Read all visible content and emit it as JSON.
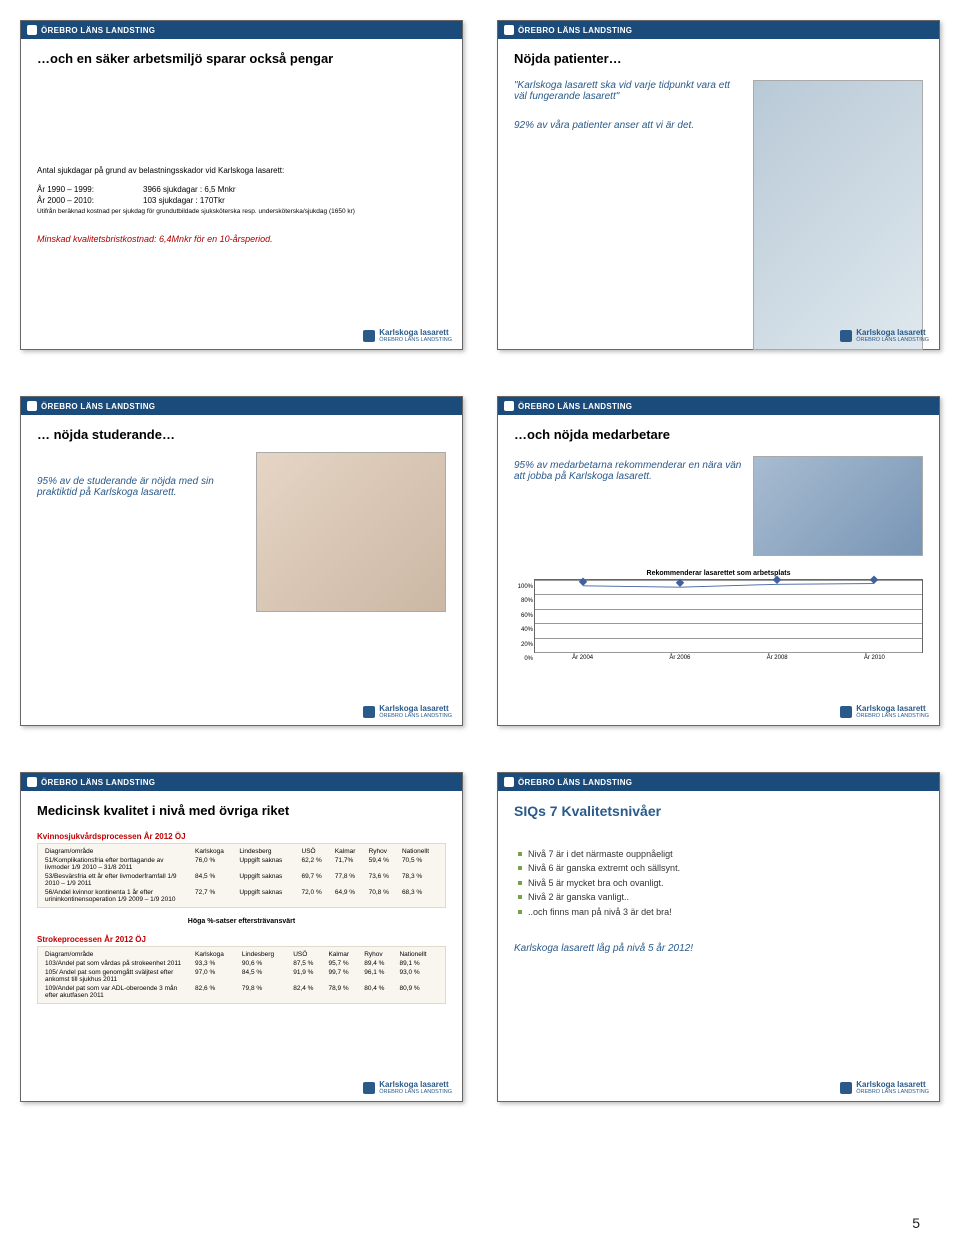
{
  "org": "ÖREBRO LÄNS LANDSTING",
  "footer_logo": "Karlskoga lasarett",
  "footer_logo_sub": "ÖREBRO LÄNS LANDSTING",
  "page_number": "5",
  "slide1": {
    "title": "…och en säker arbetsmiljö sparar också pengar",
    "lead": "Antal sjukdagar på grund av belastningsskador vid Karlskoga lasarett:",
    "row1_l": "År 1990 – 1999:",
    "row1_r": "3966 sjukdagar : 6,5 Mnkr",
    "row2_l": "År 2000 – 2010:",
    "row2_r": "103 sjukdagar : 170Tkr",
    "fine": "Utifrån beräknad kostnad per sjukdag för grundutbildade sjuksköterska resp. undersköterska/sjukdag (1650 kr)",
    "summary": "Minskad kvalitetsbristkostnad: 6,4Mnkr för en 10-årsperiod."
  },
  "slide2": {
    "title": "Nöjda patienter…",
    "quote1": "\"Karlskoga lasarett ska vid varje tidpunkt vara ett väl fungerande lasarett\"",
    "quote2": "92% av våra patienter anser att vi är det."
  },
  "slide3": {
    "title": "… nöjda studerande…",
    "text": "95% av de studerande är nöjda med sin praktiktid på Karlskoga lasarett."
  },
  "slide4": {
    "title": "…och nöjda medarbetare",
    "text": "95% av medarbetarna rekommenderar en nära vän att jobba på Karlskoga lasarett.",
    "chart": {
      "title": "Rekommenderar lasarettet som arbetsplats",
      "yticks": [
        "100%",
        "80%",
        "60%",
        "40%",
        "20%",
        "0%"
      ],
      "xlabels": [
        "År 2004",
        "År 2006",
        "År 2008",
        "År 2010"
      ],
      "values": [
        92,
        90,
        94,
        95
      ],
      "ymax": 100,
      "line_color": "#4060a0",
      "grid_color": "#999999"
    }
  },
  "slide5": {
    "title": "Medicinsk kvalitet i nivå med övriga riket",
    "t1_header": "Kvinnosjukvårdsprocessen  År 2012 ÖJ",
    "cols": [
      "Diagram/område",
      "Karlskoga",
      "Lindesberg",
      "USÖ",
      "Kalmar",
      "Ryhov",
      "Nationellt"
    ],
    "t1_rows": [
      [
        "51/Komplikationsfria efter borttagande av livmoder 1/9 2010 – 31/8 2011",
        "76,0 %",
        "Uppgift saknas",
        "62,2 %",
        "71,7%",
        "59,4   %",
        "70,5 %"
      ],
      [
        "53/Besvärsfria ett år efter livmoderframfall  1/9 2010 – 1/9 2011",
        "84,5 %",
        "Uppgift saknas",
        "69,7 %",
        "77,8 %",
        "73,6 %",
        "78,3 %"
      ],
      [
        "56/Andel kvinnor kontinenta 1 år efter urininkontinensoperation 1/9 2009 – 1/9 2010",
        "72,7 %",
        "Uppgift saknas",
        "72,0 %",
        "64,9 %",
        "70,8 %",
        "68,3 %"
      ]
    ],
    "note": "Höga %-satser eftersträvansvärt",
    "t2_header": "Strokeprocessen  År 2012 ÖJ",
    "t2_rows": [
      [
        "103/Andel pat som vårdas på strokeenhet 2011",
        "93,3 %",
        "90,6 %",
        "87,5 %",
        "95,7 %",
        "89,4 %",
        "89,1 %"
      ],
      [
        "105/ Andel pat som genomgått sväljtest efter ankomst till sjukhus 2011",
        "97,0 %",
        "84,5 %",
        "91,9 %",
        "99,7 %",
        "96,1 %",
        "93,0 %"
      ],
      [
        "109/Andel pat som var ADL-oberoende 3 mån efter akutfasen 2011",
        "82,6 %",
        "79,8 %",
        "82,4 %",
        "78,9 %",
        "80,4 %",
        "80,9 %"
      ]
    ]
  },
  "slide6": {
    "title": "SIQs 7 Kvalitetsnivåer",
    "items": [
      "Nivå 7 är i det närmaste ouppnåeligt",
      "Nivå 6 är ganska extremt och sällsynt.",
      "Nivå 5 är mycket bra och ovanligt.",
      "Nivå 2 är ganska vanligt..",
      "..och finns man på nivå 3 är det bra!"
    ],
    "conclude": "Karlskoga lasarett låg på nivå 5 år 2012!"
  }
}
